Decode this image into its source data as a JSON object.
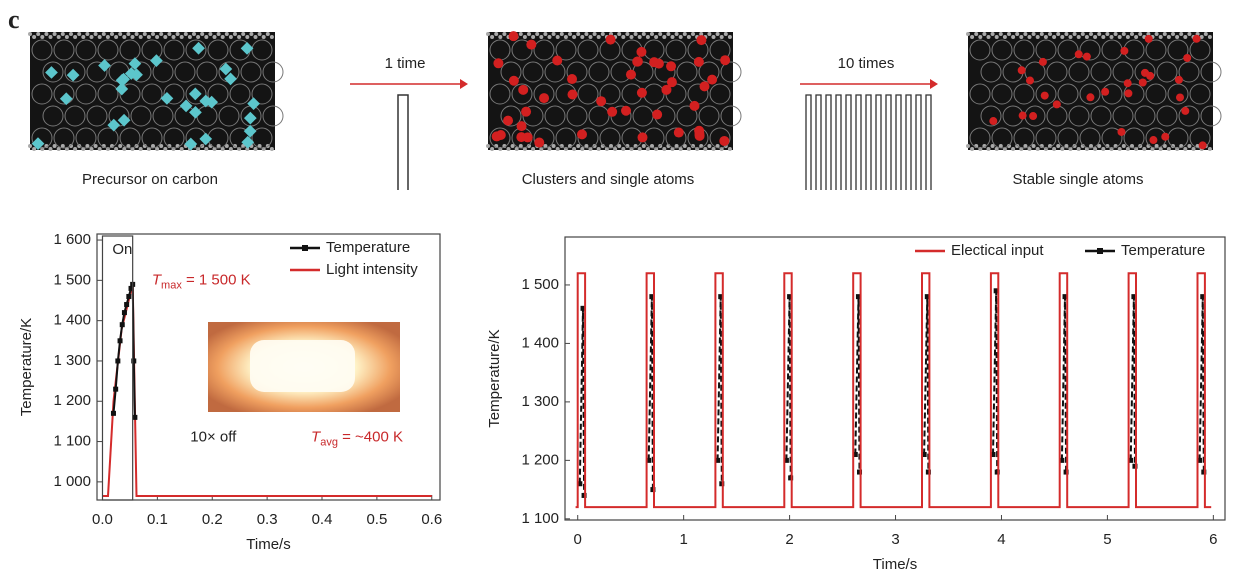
{
  "figure": {
    "panel": "c",
    "captions": [
      "Precursor on carbon",
      "Clusters and single atoms",
      "Stable single atoms"
    ],
    "arrows": [
      "1 time",
      "10 times"
    ]
  },
  "chart_data": [
    {
      "type": "line",
      "ylabel": "Temperature/K",
      "xlabel": "Time/s",
      "xlim": [
        -0.01,
        0.615
      ],
      "ylim": [
        955,
        1615
      ],
      "xticks": [
        {
          "value": 0,
          "label": "0.0"
        },
        0.1,
        0.2,
        0.3,
        0.4,
        0.5,
        0.6
      ],
      "yticks": [
        {
          "value": 1000,
          "label": "1 000"
        },
        {
          "value": 1100,
          "label": "1 100"
        },
        {
          "value": 1200,
          "label": "1 200"
        },
        {
          "value": 1300,
          "label": "1 300"
        },
        {
          "value": 1400,
          "label": "1 400"
        },
        {
          "value": 1500,
          "label": "1 500"
        },
        {
          "value": 1600,
          "label": "1 600"
        }
      ],
      "legend": "top-right",
      "annotations": [
        {
          "text": "On"
        },
        {
          "text": "T",
          "sub": "max",
          "after": " = 1 500 K",
          "color": "#c8282a"
        },
        {
          "text": "10× off"
        },
        {
          "text": "T",
          "sub": "avg",
          "after": " = ~400 K",
          "color": "#c8282a"
        }
      ],
      "series": [
        {
          "name": "Temperature",
          "color": "#111111",
          "marker": "square",
          "x": [
            0.02,
            0.024,
            0.028,
            0.032,
            0.036,
            0.04,
            0.044,
            0.048,
            0.052,
            0.055,
            0.057,
            0.059
          ],
          "values": [
            1170,
            1230,
            1300,
            1350,
            1390,
            1420,
            1440,
            1460,
            1480,
            1490,
            1300,
            1160
          ]
        },
        {
          "name": "Light intensity",
          "color": "#d42b2b",
          "x": [
            0,
            0.01,
            0.02,
            0.035,
            0.055,
            0.062,
            0.6
          ],
          "values": [
            965,
            965,
            1200,
            1380,
            1490,
            965,
            965
          ]
        }
      ]
    },
    {
      "type": "line",
      "ylabel": "Temperature/K",
      "xlabel": "Time/s",
      "xlim": [
        -0.12,
        6.11
      ],
      "ylim": [
        1098,
        1582
      ],
      "xticks": [
        0,
        1,
        2,
        3,
        4,
        5,
        6
      ],
      "yticks": [
        {
          "value": 1100,
          "label": "1 100"
        },
        {
          "value": 1200,
          "label": "1 200"
        },
        {
          "value": 1300,
          "label": "1 300"
        },
        {
          "value": 1400,
          "label": "1 400"
        },
        {
          "value": 1500,
          "label": "1 500"
        }
      ],
      "legend": "top-right",
      "series": [
        {
          "name": "Electical input",
          "color": "#d42b2b",
          "x": [
            -0.02,
            0,
            0,
            0.07,
            0.07,
            0.65,
            0.65,
            0.72,
            0.72,
            1.3,
            1.3,
            1.37,
            1.37,
            1.95,
            1.95,
            2.02,
            2.02,
            2.6,
            2.6,
            2.67,
            2.67,
            3.25,
            3.25,
            3.32,
            3.32,
            3.9,
            3.9,
            3.97,
            3.97,
            4.55,
            4.55,
            4.62,
            4.62,
            5.2,
            5.2,
            5.27,
            5.27,
            5.85,
            5.85,
            5.92,
            5.92,
            5.98
          ],
          "values": [
            1120,
            1120,
            1520,
            1520,
            1120,
            1120,
            1520,
            1520,
            1120,
            1120,
            1520,
            1520,
            1120,
            1120,
            1520,
            1520,
            1120,
            1120,
            1520,
            1520,
            1120,
            1120,
            1520,
            1520,
            1120,
            1120,
            1520,
            1520,
            1120,
            1120,
            1520,
            1520,
            1120,
            1120,
            1520,
            1520,
            1120,
            1120,
            1520,
            1520,
            1120,
            1120
          ]
        },
        {
          "name": "Temperature",
          "color": "#111111",
          "marker": "square",
          "dash": true,
          "x": [
            0.02,
            0.05,
            0.06,
            null,
            0.67,
            0.7,
            0.71,
            null,
            1.32,
            1.35,
            1.36,
            null,
            1.97,
            2.0,
            2.01,
            null,
            2.62,
            2.65,
            2.66,
            null,
            3.27,
            3.3,
            3.31,
            null,
            3.92,
            3.95,
            3.96,
            null,
            4.57,
            4.6,
            4.61,
            null,
            5.22,
            5.25,
            5.26,
            null,
            5.87,
            5.9,
            5.91
          ],
          "values": [
            1160,
            1460,
            1140,
            null,
            1200,
            1480,
            1150,
            null,
            1200,
            1480,
            1160,
            null,
            1200,
            1480,
            1170,
            null,
            1210,
            1480,
            1180,
            null,
            1210,
            1480,
            1180,
            null,
            1210,
            1490,
            1180,
            null,
            1200,
            1480,
            1180,
            null,
            1200,
            1480,
            1190,
            null,
            1200,
            1480,
            1180
          ]
        }
      ]
    }
  ]
}
